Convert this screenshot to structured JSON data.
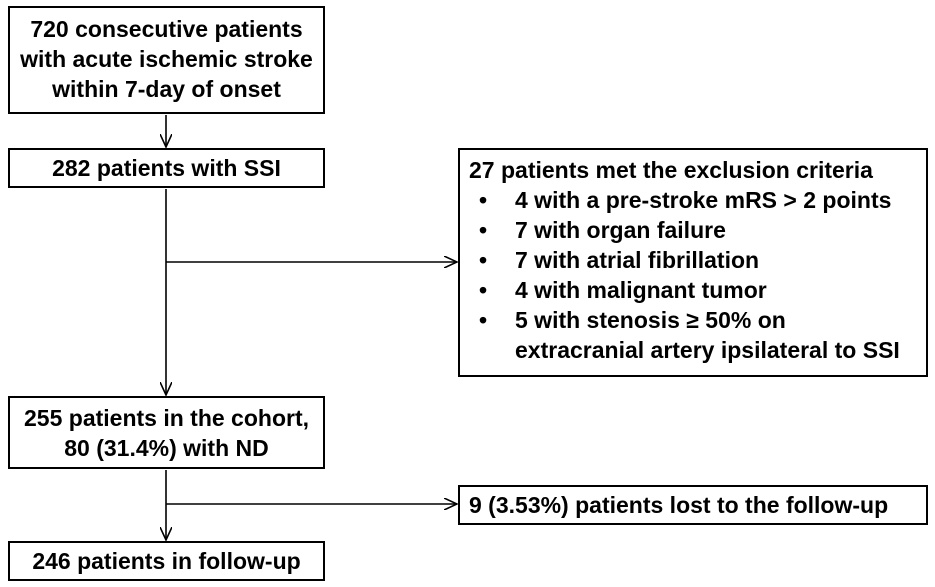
{
  "boxes": {
    "start": {
      "lines": [
        "720 consecutive patients",
        "with acute ischemic stroke",
        "within 7-day of onset"
      ]
    },
    "ssi": {
      "text": "282  patients with SSI"
    },
    "exclusion": {
      "title": "27 patients met the exclusion criteria",
      "items": [
        "4 with a pre-stroke mRS > 2 points",
        "7 with organ failure",
        "7 with atrial fibrillation",
        "4 with malignant tumor",
        "5 with stenosis ≥ 50% on extracranial artery ipsilateral to SSI"
      ]
    },
    "cohort": {
      "lines": [
        "255 patients in the cohort,",
        "80 (31.4%) with ND"
      ]
    },
    "lost": {
      "text": "9 (3.53%) patients lost to the follow-up"
    },
    "followup": {
      "text": "246 patients in follow-up"
    }
  }
}
